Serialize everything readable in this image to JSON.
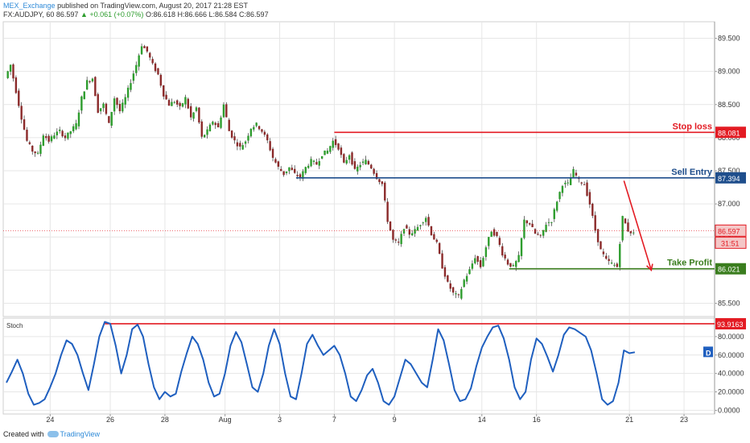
{
  "header": {
    "publisher": "MEX_Exchange",
    "published_text": "published on TradingView.com, August 20, 2017 21:28 EST",
    "symbol": "FX:AUDJPY, 60",
    "last_price": "86.597",
    "arrow": "▲",
    "change": "+0.061 (+0.07%)",
    "ohlc": "O:86.618 H:86.666 L:86.584 C:86.597"
  },
  "footer": {
    "created_with": "Created with",
    "brand": "TradingView"
  },
  "colors": {
    "candle_up": "#2e9d2e",
    "candle_down": "#8b2a2a",
    "stop": "#e31b23",
    "entry": "#1f4e8c",
    "profit": "#3a7d1e",
    "stoch": "#1f5fbf",
    "grid": "#e6e6e6"
  },
  "chart_data": {
    "type": "candlestick",
    "symbol": "FX:AUDJPY",
    "interval": "60",
    "price_axis": {
      "ylim": [
        85.3,
        89.75
      ],
      "ticks": [
        "89.500",
        "89.000",
        "88.500",
        "88.000",
        "87.500",
        "87.000",
        "86.500",
        "86.000",
        "85.500"
      ]
    },
    "x_axis": {
      "ticks": [
        {
          "label": "24",
          "i": 8
        },
        {
          "label": "26",
          "i": 19
        },
        {
          "label": "28",
          "i": 29
        },
        {
          "label": "Aug",
          "i": 40
        },
        {
          "label": "3",
          "i": 50
        },
        {
          "label": "7",
          "i": 60
        },
        {
          "label": "9",
          "i": 71
        },
        {
          "label": "14",
          "i": 87
        },
        {
          "label": "16",
          "i": 97
        },
        {
          "label": "21",
          "i": 114
        },
        {
          "label": "23",
          "i": 124
        }
      ],
      "n_slots": 130
    },
    "price_path": [
      88.9,
      89.1,
      88.7,
      88.3,
      87.95,
      87.8,
      87.75,
      88.05,
      87.95,
      88.05,
      88.1,
      88.0,
      88.1,
      88.2,
      88.6,
      88.85,
      88.9,
      88.4,
      88.5,
      88.2,
      88.6,
      88.4,
      88.6,
      88.85,
      89.1,
      89.4,
      89.3,
      89.1,
      88.95,
      88.65,
      88.5,
      88.55,
      88.45,
      88.6,
      88.3,
      88.45,
      88.0,
      88.1,
      88.25,
      88.15,
      88.5,
      88.1,
      87.95,
      87.85,
      87.95,
      88.15,
      88.2,
      88.1,
      87.95,
      87.7,
      87.55,
      87.45,
      87.55,
      87.45,
      87.4,
      87.55,
      87.65,
      87.6,
      87.75,
      87.8,
      87.95,
      87.85,
      87.6,
      87.75,
      87.5,
      87.6,
      87.65,
      87.55,
      87.4,
      87.3,
      86.75,
      86.45,
      86.4,
      86.65,
      86.55,
      86.6,
      86.7,
      86.8,
      86.55,
      86.4,
      86.05,
      85.8,
      85.65,
      85.6,
      85.85,
      86.0,
      86.2,
      86.05,
      86.35,
      86.6,
      86.5,
      86.25,
      86.1,
      86.05,
      86.2,
      86.75,
      86.7,
      86.55,
      86.5,
      86.7,
      86.75,
      87.05,
      87.3,
      87.3,
      87.5,
      87.35,
      87.3,
      87.0,
      86.6,
      86.3,
      86.15,
      86.1,
      86.05,
      86.8,
      86.6,
      86.55
    ],
    "levels": [
      {
        "name": "Stop loss",
        "value": 88.081,
        "label": "88.081",
        "from_i": 60
      },
      {
        "name": "Sell Entry",
        "value": 87.394,
        "label": "87.394",
        "from_i": 53
      },
      {
        "name": "Take Profit",
        "value": 86.021,
        "label": "86.021",
        "from_i": 92
      }
    ],
    "current_price": {
      "value": 86.597,
      "label": "86.597",
      "countdown": "31:51"
    },
    "projection_arrow": {
      "from_i": 113,
      "from_value": 87.35,
      "to_i": 118,
      "to_value": 86.0
    },
    "stochastic": {
      "title": "Stoch",
      "ylim": [
        -4,
        100
      ],
      "ticks": [
        "80.0000",
        "60.0000",
        "40.0000",
        "20.0000",
        "0.0000"
      ],
      "level": {
        "value": 93.9163,
        "label": "93.9163"
      },
      "d_label": "D",
      "values": [
        30,
        42,
        55,
        40,
        18,
        6,
        8,
        12,
        25,
        40,
        60,
        76,
        72,
        60,
        40,
        22,
        50,
        80,
        96,
        94,
        70,
        40,
        60,
        88,
        93,
        80,
        50,
        25,
        12,
        20,
        15,
        18,
        42,
        62,
        80,
        72,
        55,
        30,
        15,
        18,
        40,
        70,
        85,
        74,
        50,
        25,
        20,
        40,
        70,
        88,
        72,
        40,
        15,
        12,
        40,
        72,
        82,
        70,
        60,
        65,
        70,
        60,
        40,
        15,
        10,
        22,
        38,
        45,
        30,
        10,
        6,
        15,
        35,
        55,
        50,
        40,
        30,
        25,
        55,
        88,
        76,
        50,
        22,
        10,
        12,
        24,
        48,
        68,
        80,
        90,
        92,
        78,
        55,
        25,
        12,
        20,
        55,
        78,
        72,
        58,
        42,
        60,
        82,
        90,
        88,
        84,
        80,
        65,
        40,
        12,
        6,
        10,
        30,
        65,
        62,
        63
      ]
    }
  }
}
